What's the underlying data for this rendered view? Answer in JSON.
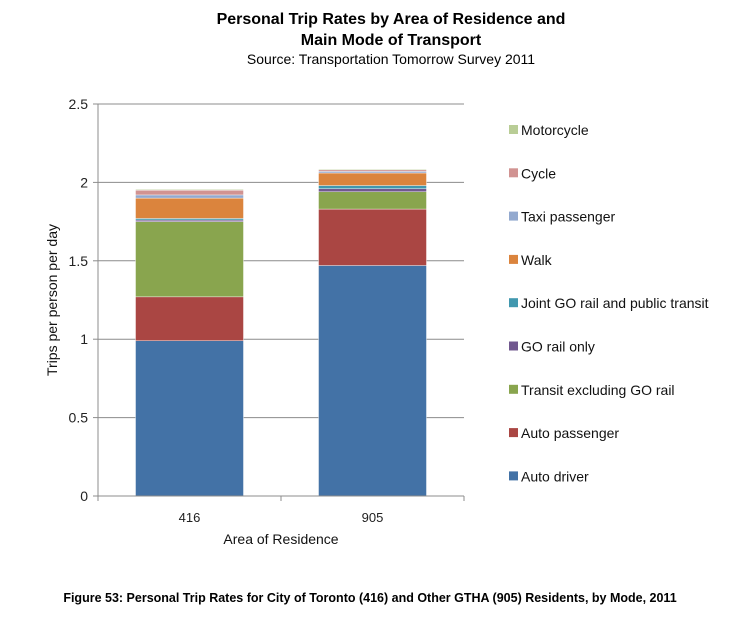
{
  "chart_data": {
    "type": "bar",
    "stacked": true,
    "title": "Personal Trip Rates by Area of Residence and Main Mode of Transport",
    "title_lines": [
      "Personal Trip Rates by Area of Residence and",
      "Main Mode of Transport"
    ],
    "subtitle": "Source: Transportation Tomorrow Survey 2011",
    "xlabel": "Area of Residence",
    "ylabel": "Trips per person per day",
    "categories": [
      "416",
      "905"
    ],
    "ylim": [
      0,
      2.5
    ],
    "yticks": [
      "0",
      "0.5",
      "1",
      "1.5",
      "2",
      "2.5"
    ],
    "ytick_values": [
      0,
      0.5,
      1,
      1.5,
      2,
      2.5
    ],
    "grid": true,
    "legend_position": "right",
    "series": [
      {
        "name": "Auto driver",
        "color": "#4372A6",
        "values": [
          0.99,
          1.47
        ]
      },
      {
        "name": "Auto passenger",
        "color": "#AA4643",
        "values": [
          0.28,
          0.36
        ]
      },
      {
        "name": "Transit excluding GO rail",
        "color": "#89A54E",
        "values": [
          0.48,
          0.11
        ]
      },
      {
        "name": "GO rail only",
        "color": "#71588F",
        "values": [
          0.01,
          0.02
        ]
      },
      {
        "name": "Joint GO rail and public transit",
        "color": "#4198AF",
        "values": [
          0.01,
          0.02
        ]
      },
      {
        "name": "Walk",
        "color": "#DB843D",
        "values": [
          0.13,
          0.08
        ]
      },
      {
        "name": "Taxi passenger",
        "color": "#93A9CF",
        "values": [
          0.02,
          0.01
        ]
      },
      {
        "name": "Cycle",
        "color": "#D19392",
        "values": [
          0.03,
          0.01
        ]
      },
      {
        "name": "Motorcycle",
        "color": "#B9CD96",
        "values": [
          0.005,
          0.005
        ]
      }
    ]
  },
  "figure_caption": "Figure 53: Personal Trip Rates for City of Toronto (416) and Other GTHA (905) Residents, by Mode, 2011"
}
